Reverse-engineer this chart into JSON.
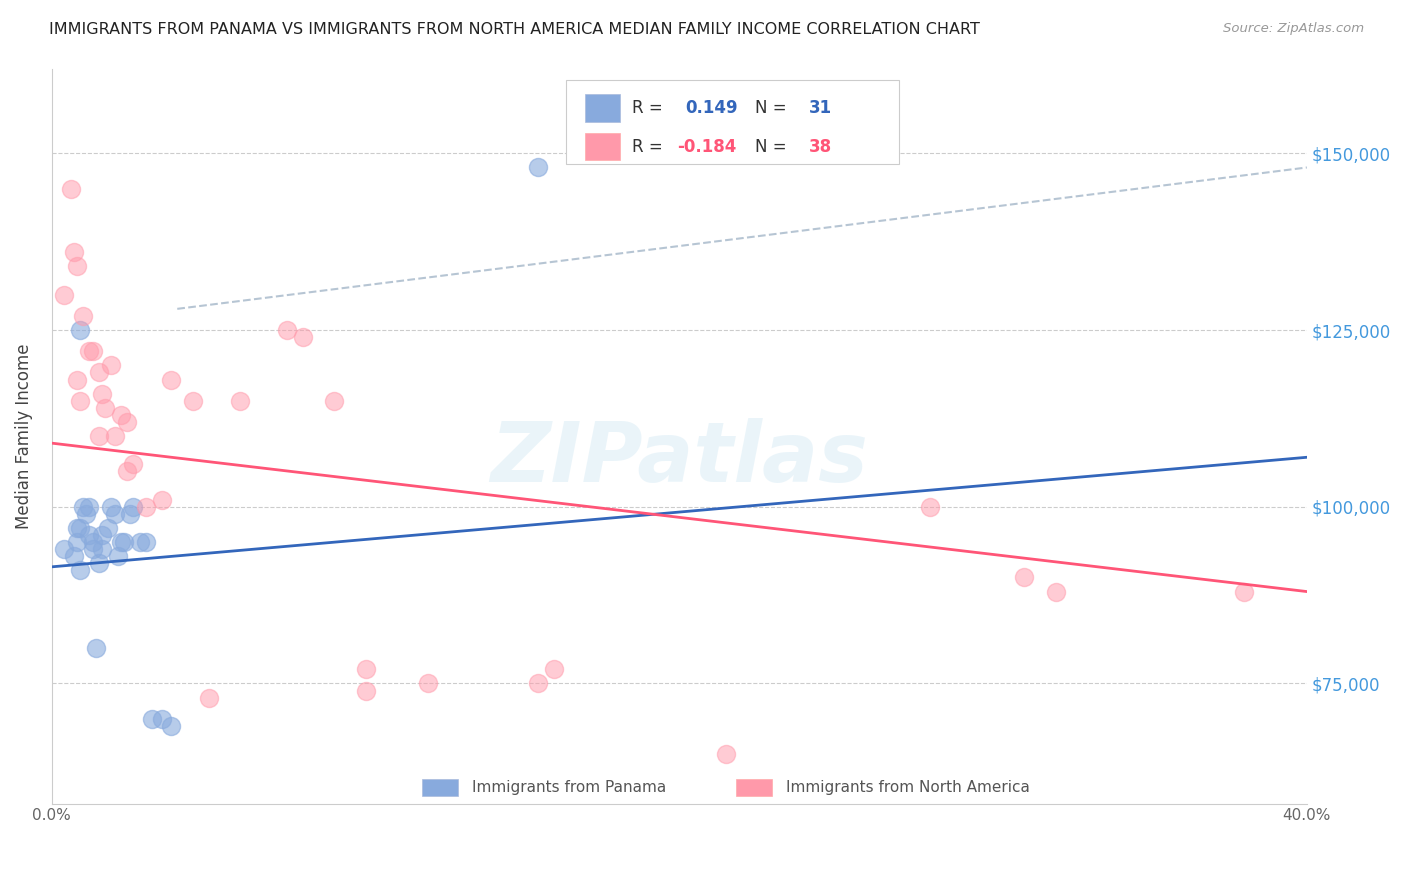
{
  "title": "IMMIGRANTS FROM PANAMA VS IMMIGRANTS FROM NORTH AMERICA MEDIAN FAMILY INCOME CORRELATION CHART",
  "source": "Source: ZipAtlas.com",
  "ylabel": "Median Family Income",
  "xlim": [
    0.0,
    0.4
  ],
  "ylim": [
    58000,
    162000
  ],
  "yticks": [
    75000,
    100000,
    125000,
    150000
  ],
  "ytick_labels": [
    "$75,000",
    "$100,000",
    "$125,000",
    "$150,000"
  ],
  "xticks": [
    0.0,
    0.08,
    0.16,
    0.24,
    0.32,
    0.4
  ],
  "xtick_labels": [
    "0.0%",
    "",
    "",
    "",
    "",
    "40.0%"
  ],
  "watermark": "ZIPatlas",
  "blue_color": "#88AADD",
  "pink_color": "#FF99AA",
  "blue_line_color": "#3366BB",
  "pink_line_color": "#FF5577",
  "dashed_line_color": "#AABBCC",
  "right_label_color": "#4499DD",
  "panama_x": [
    0.004,
    0.007,
    0.008,
    0.008,
    0.009,
    0.009,
    0.01,
    0.011,
    0.012,
    0.013,
    0.013,
    0.014,
    0.015,
    0.016,
    0.016,
    0.018,
    0.019,
    0.02,
    0.021,
    0.022,
    0.023,
    0.025,
    0.026,
    0.028,
    0.03,
    0.032,
    0.035,
    0.038,
    0.155,
    0.009,
    0.012
  ],
  "panama_y": [
    94000,
    93000,
    97000,
    95000,
    97000,
    91000,
    100000,
    99000,
    96000,
    95000,
    94000,
    80000,
    92000,
    96000,
    94000,
    97000,
    100000,
    99000,
    93000,
    95000,
    95000,
    99000,
    100000,
    95000,
    95000,
    70000,
    70000,
    69000,
    148000,
    125000,
    100000
  ],
  "northam_x": [
    0.004,
    0.006,
    0.007,
    0.008,
    0.008,
    0.009,
    0.01,
    0.012,
    0.013,
    0.015,
    0.016,
    0.017,
    0.019,
    0.02,
    0.022,
    0.024,
    0.024,
    0.026,
    0.03,
    0.035,
    0.038,
    0.045,
    0.06,
    0.075,
    0.08,
    0.09,
    0.1,
    0.1,
    0.12,
    0.155,
    0.16,
    0.215,
    0.28,
    0.31,
    0.32,
    0.38,
    0.015,
    0.05
  ],
  "northam_y": [
    130000,
    145000,
    136000,
    134000,
    118000,
    115000,
    127000,
    122000,
    122000,
    119000,
    116000,
    114000,
    120000,
    110000,
    113000,
    112000,
    105000,
    106000,
    100000,
    101000,
    118000,
    115000,
    115000,
    125000,
    124000,
    115000,
    77000,
    74000,
    75000,
    75000,
    77000,
    65000,
    100000,
    90000,
    88000,
    88000,
    110000,
    73000
  ],
  "blue_line_x0": 0.0,
  "blue_line_y0": 91500,
  "blue_line_x1": 0.4,
  "blue_line_y1": 107000,
  "pink_line_x0": 0.0,
  "pink_line_y0": 109000,
  "pink_line_x1": 0.4,
  "pink_line_y1": 88000,
  "dashed_line_x0": 0.04,
  "dashed_line_y0": 128000,
  "dashed_line_x1": 0.4,
  "dashed_line_y1": 148000
}
